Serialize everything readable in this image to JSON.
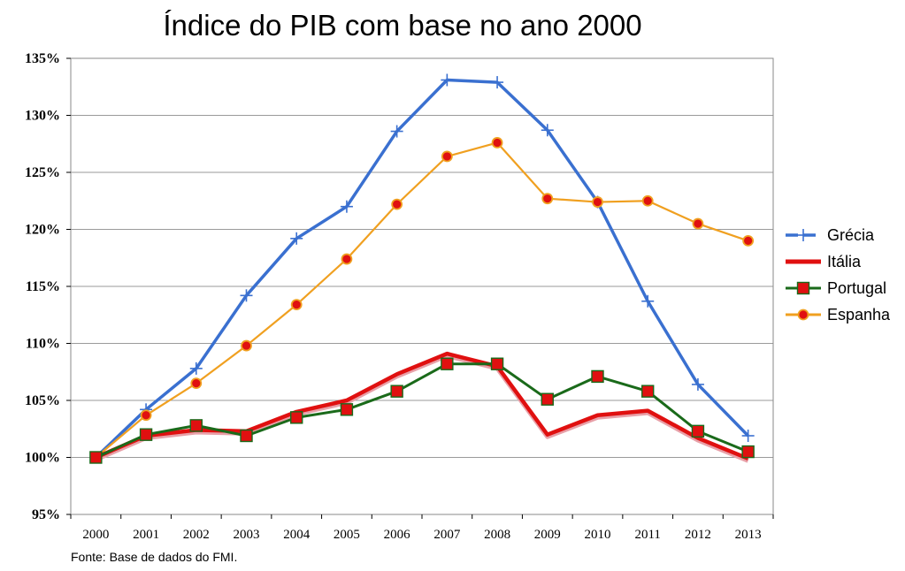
{
  "chart_data": {
    "type": "line",
    "title": "Índice do PIB com base no ano 2000",
    "source_note": "Fonte: Base de dados do FMI.",
    "xlabel": "",
    "ylabel": "",
    "x": [
      "2000",
      "2001",
      "2002",
      "2003",
      "2004",
      "2005",
      "2006",
      "2007",
      "2008",
      "2009",
      "2010",
      "2011",
      "2012",
      "2013"
    ],
    "y_ticks": [
      "95%",
      "100%",
      "105%",
      "110%",
      "115%",
      "120%",
      "125%",
      "130%",
      "135%"
    ],
    "ylim": [
      95,
      135
    ],
    "grid": true,
    "legend_position": "right",
    "series": [
      {
        "name": "Grécia",
        "color": "#3a70d0",
        "marker": "plus",
        "values": [
          100.0,
          104.2,
          107.8,
          114.2,
          119.2,
          122.0,
          128.6,
          133.1,
          132.9,
          128.7,
          122.4,
          113.7,
          106.4,
          101.9
        ]
      },
      {
        "name": "Itália",
        "color": "#e01010",
        "marker": "none",
        "values": [
          100.0,
          101.9,
          102.4,
          102.3,
          104.0,
          105.0,
          107.3,
          109.1,
          108.0,
          102.0,
          103.7,
          104.1,
          101.7,
          99.9
        ]
      },
      {
        "name": "Portugal",
        "color": "#1a6a1a",
        "marker": "square",
        "marker_color": "#e01010",
        "values": [
          100.0,
          102.0,
          102.8,
          101.9,
          103.5,
          104.2,
          105.8,
          108.2,
          108.2,
          105.1,
          107.1,
          105.8,
          102.3,
          100.5
        ]
      },
      {
        "name": "Espanha",
        "color": "#f0a020",
        "marker": "circle",
        "marker_color": "#e01010",
        "values": [
          100.0,
          103.7,
          106.5,
          109.8,
          113.4,
          117.4,
          122.2,
          126.4,
          127.6,
          122.7,
          122.4,
          122.5,
          120.5,
          119.0
        ]
      }
    ]
  }
}
